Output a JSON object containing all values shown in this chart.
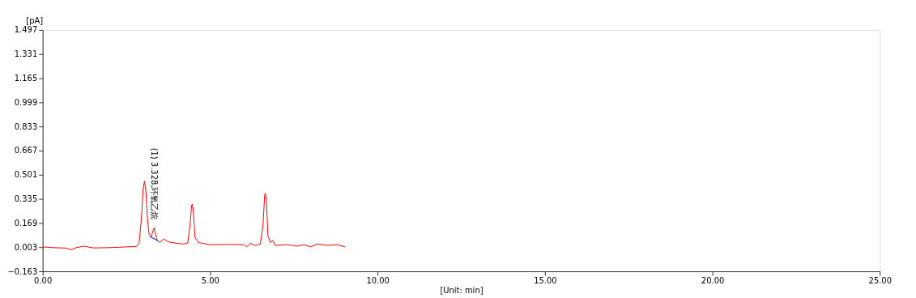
{
  "chart_data": {
    "type": "line",
    "xlabel": "[Unit: min]",
    "ylabel": "[pA]",
    "xlim": [
      0,
      25
    ],
    "xticks": [
      {
        "value": 0,
        "label": "0.00"
      },
      {
        "value": 5,
        "label": "5.00"
      },
      {
        "value": 10,
        "label": "10.00"
      },
      {
        "value": 15,
        "label": "15.00"
      },
      {
        "value": 20,
        "label": "20.00"
      },
      {
        "value": 25,
        "label": "25.00"
      }
    ],
    "ylim": [
      -0.163,
      1.497
    ],
    "yticks": [
      -0.163,
      0.003,
      0.169,
      0.335,
      0.501,
      0.667,
      0.833,
      0.999,
      1.165,
      1.331,
      1.497
    ],
    "grid": false,
    "marker": "none",
    "line_style": "solid",
    "series": [
      {
        "color": "#ff0000",
        "x": [
          0.0,
          0.3,
          0.7,
          0.85,
          1.0,
          1.25,
          1.5,
          2.0,
          2.5,
          2.8,
          2.88,
          2.95,
          3.0,
          3.04,
          3.08,
          3.13,
          3.18,
          3.24,
          3.3,
          3.33,
          3.37,
          3.42,
          3.5,
          3.62,
          3.75,
          4.0,
          4.2,
          4.33,
          4.4,
          4.45,
          4.47,
          4.5,
          4.55,
          4.65,
          5.0,
          5.5,
          6.0,
          6.1,
          6.2,
          6.35,
          6.5,
          6.58,
          6.63,
          6.65,
          6.68,
          6.73,
          6.8,
          6.87,
          6.95,
          7.3,
          7.6,
          7.8,
          8.0,
          8.2,
          8.5,
          8.8,
          9.04
        ],
        "values": [
          0.005,
          0.0,
          -0.003,
          -0.015,
          0.0,
          0.01,
          -0.002,
          0.0,
          0.005,
          0.008,
          0.03,
          0.2,
          0.4,
          0.457,
          0.4,
          0.2,
          0.09,
          0.07,
          0.12,
          0.136,
          0.09,
          0.05,
          0.035,
          0.06,
          0.04,
          0.03,
          0.025,
          0.03,
          0.15,
          0.29,
          0.299,
          0.25,
          0.07,
          0.035,
          0.02,
          0.022,
          0.02,
          0.005,
          0.03,
          0.015,
          0.025,
          0.15,
          0.36,
          0.373,
          0.33,
          0.08,
          0.035,
          0.05,
          0.015,
          0.02,
          0.01,
          0.02,
          0.005,
          0.025,
          0.015,
          0.02,
          0.005
        ]
      },
      {
        "color": "#0000ff",
        "x": [
          3.22,
          3.45
        ],
        "values": [
          0.075,
          0.045
        ]
      }
    ],
    "annotations": [
      {
        "text": "(1) 3.328,环氧乙烷",
        "x": 3.328,
        "y": 0.136
      }
    ]
  }
}
